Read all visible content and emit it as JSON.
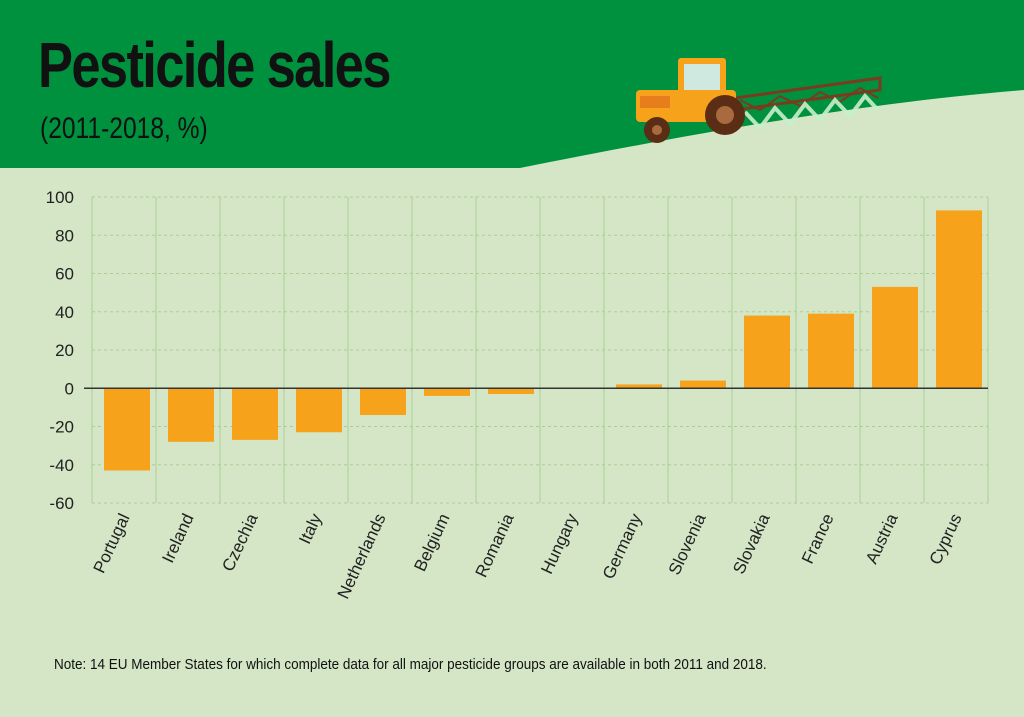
{
  "title": "Pesticide sales",
  "subtitle": "(2011-2018, %)",
  "note": "Note: 14 EU Member States for which complete data for all major pesticide groups are available in both 2011 and 2018.",
  "colors": {
    "header_green": "#00913f",
    "background": "#d4e6c6",
    "bar": "#f6a31b",
    "grid": "#a9cf95"
  },
  "illustration": "tractor-sprayer-icon",
  "chart_data": {
    "type": "bar",
    "title": "Pesticide sales",
    "subtitle": "(2011-2018, %)",
    "xlabel": "",
    "ylabel": "",
    "ylim": [
      -60,
      100
    ],
    "yticks": [
      100,
      80,
      60,
      40,
      20,
      0,
      -20,
      -40,
      -60
    ],
    "grid": true,
    "categories": [
      "Portugal",
      "Ireland",
      "Czechia",
      "Italy",
      "Netherlands",
      "Belgium",
      "Romania",
      "Hungary",
      "Germany",
      "Slovenia",
      "Slovakia",
      "France",
      "Austria",
      "Cyprus"
    ],
    "values": [
      -43,
      -28,
      -27,
      -23,
      -14,
      -4,
      -3,
      0,
      2,
      4,
      38,
      39,
      53,
      93
    ]
  }
}
